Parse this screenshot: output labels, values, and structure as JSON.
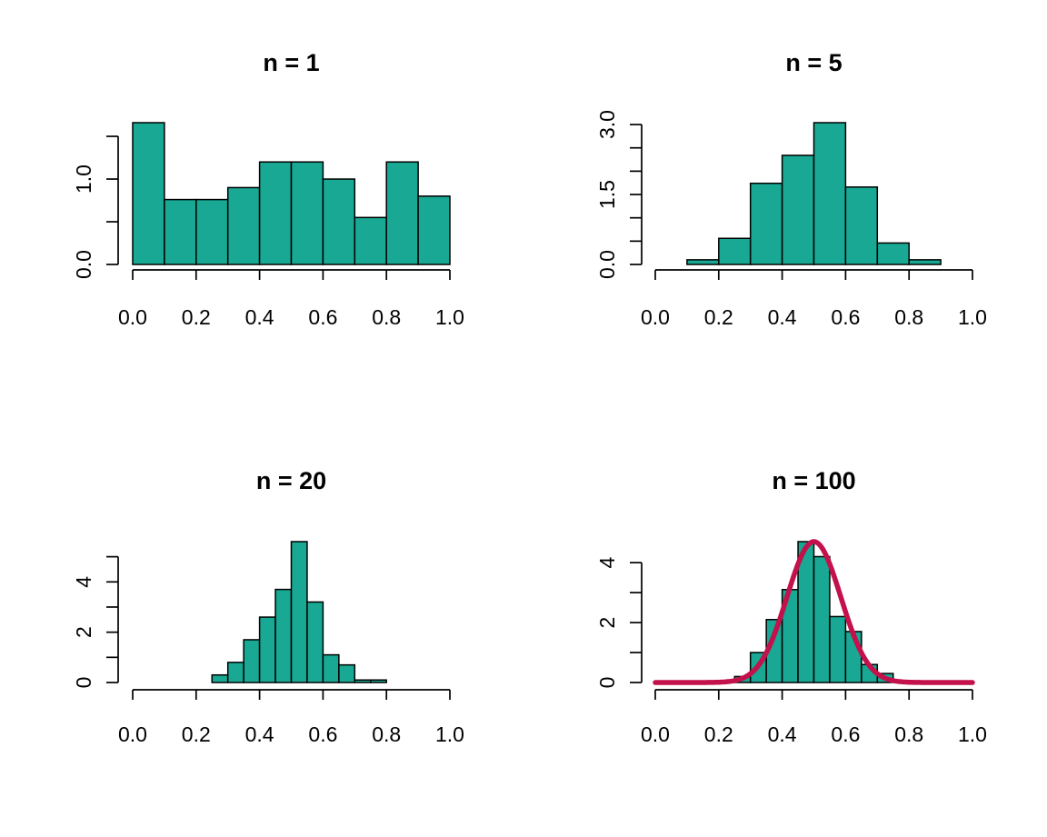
{
  "colors": {
    "bar_fill": "#18a893",
    "curve": "#c2114b",
    "axis": "#000000",
    "background": "#ffffff"
  },
  "chart_data": [
    {
      "type": "bar",
      "title": "n = 1",
      "xlabel": "",
      "ylabel": "",
      "bin_edges": [
        0.0,
        0.1,
        0.2,
        0.3,
        0.4,
        0.5,
        0.6,
        0.7,
        0.8,
        0.9,
        1.0
      ],
      "values": [
        1.66,
        0.76,
        0.76,
        0.9,
        1.2,
        1.2,
        1.0,
        0.55,
        1.2,
        0.8
      ],
      "xlim": [
        0,
        1
      ],
      "ylim": [
        0,
        1.66
      ],
      "x_ticks": [
        0.0,
        0.2,
        0.4,
        0.6,
        0.8,
        1.0
      ],
      "x_tick_labels": [
        "0.0",
        "0.2",
        "0.4",
        "0.6",
        "0.8",
        "1.0"
      ],
      "y_ticks": [
        0.0,
        0.5,
        1.0,
        1.5
      ],
      "y_tick_labels": [
        "0.0",
        "",
        "1.0",
        ""
      ],
      "grid": false
    },
    {
      "type": "bar",
      "title": "n = 5",
      "xlabel": "",
      "ylabel": "",
      "bin_edges": [
        0.1,
        0.2,
        0.3,
        0.4,
        0.5,
        0.6,
        0.7,
        0.8,
        0.9
      ],
      "values": [
        0.1,
        0.56,
        1.74,
        2.34,
        3.04,
        1.66,
        0.46,
        0.1
      ],
      "xlim": [
        0,
        1
      ],
      "ylim": [
        0,
        3.04
      ],
      "x_ticks": [
        0.0,
        0.2,
        0.4,
        0.6,
        0.8,
        1.0
      ],
      "x_tick_labels": [
        "0.0",
        "0.2",
        "0.4",
        "0.6",
        "0.8",
        "1.0"
      ],
      "y_ticks": [
        0.0,
        0.5,
        1.0,
        1.5,
        2.0,
        2.5,
        3.0
      ],
      "y_tick_labels": [
        "0.0",
        "",
        "",
        "1.5",
        "",
        "",
        "3.0"
      ],
      "grid": false
    },
    {
      "type": "bar",
      "title": "n = 20",
      "xlabel": "",
      "ylabel": "",
      "bin_edges": [
        0.25,
        0.3,
        0.35,
        0.4,
        0.45,
        0.5,
        0.55,
        0.6,
        0.65,
        0.7,
        0.75,
        0.8
      ],
      "values": [
        0.3,
        0.8,
        1.7,
        2.6,
        3.7,
        5.6,
        3.2,
        1.1,
        0.7,
        0.1,
        0.1
      ],
      "xlim": [
        0,
        1
      ],
      "ylim": [
        0,
        5.6
      ],
      "x_ticks": [
        0.0,
        0.2,
        0.4,
        0.6,
        0.8,
        1.0
      ],
      "x_tick_labels": [
        "0.0",
        "0.2",
        "0.4",
        "0.6",
        "0.8",
        "1.0"
      ],
      "y_ticks": [
        0,
        1,
        2,
        3,
        4,
        5
      ],
      "y_tick_labels": [
        "0",
        "",
        "2",
        "",
        "4",
        ""
      ],
      "grid": false
    },
    {
      "type": "bar",
      "title": "n = 100",
      "xlabel": "",
      "ylabel": "",
      "bin_edges": [
        0.25,
        0.3,
        0.35,
        0.4,
        0.45,
        0.5,
        0.55,
        0.6,
        0.65,
        0.7,
        0.75
      ],
      "values": [
        0.2,
        1.0,
        2.1,
        3.1,
        4.7,
        4.2,
        2.2,
        1.7,
        0.6,
        0.3
      ],
      "xlim": [
        0,
        1
      ],
      "ylim": [
        0,
        4.7
      ],
      "x_ticks": [
        0.0,
        0.2,
        0.4,
        0.6,
        0.8,
        1.0
      ],
      "x_tick_labels": [
        "0.0",
        "0.2",
        "0.4",
        "0.6",
        "0.8",
        "1.0"
      ],
      "y_ticks": [
        0,
        1,
        2,
        3,
        4
      ],
      "y_tick_labels": [
        "0",
        "",
        "2",
        "",
        "4"
      ],
      "overlay": {
        "type": "line",
        "shape": "normal density",
        "mean": 0.5,
        "sd": 0.085,
        "peak": 4.7
      },
      "grid": false
    }
  ]
}
